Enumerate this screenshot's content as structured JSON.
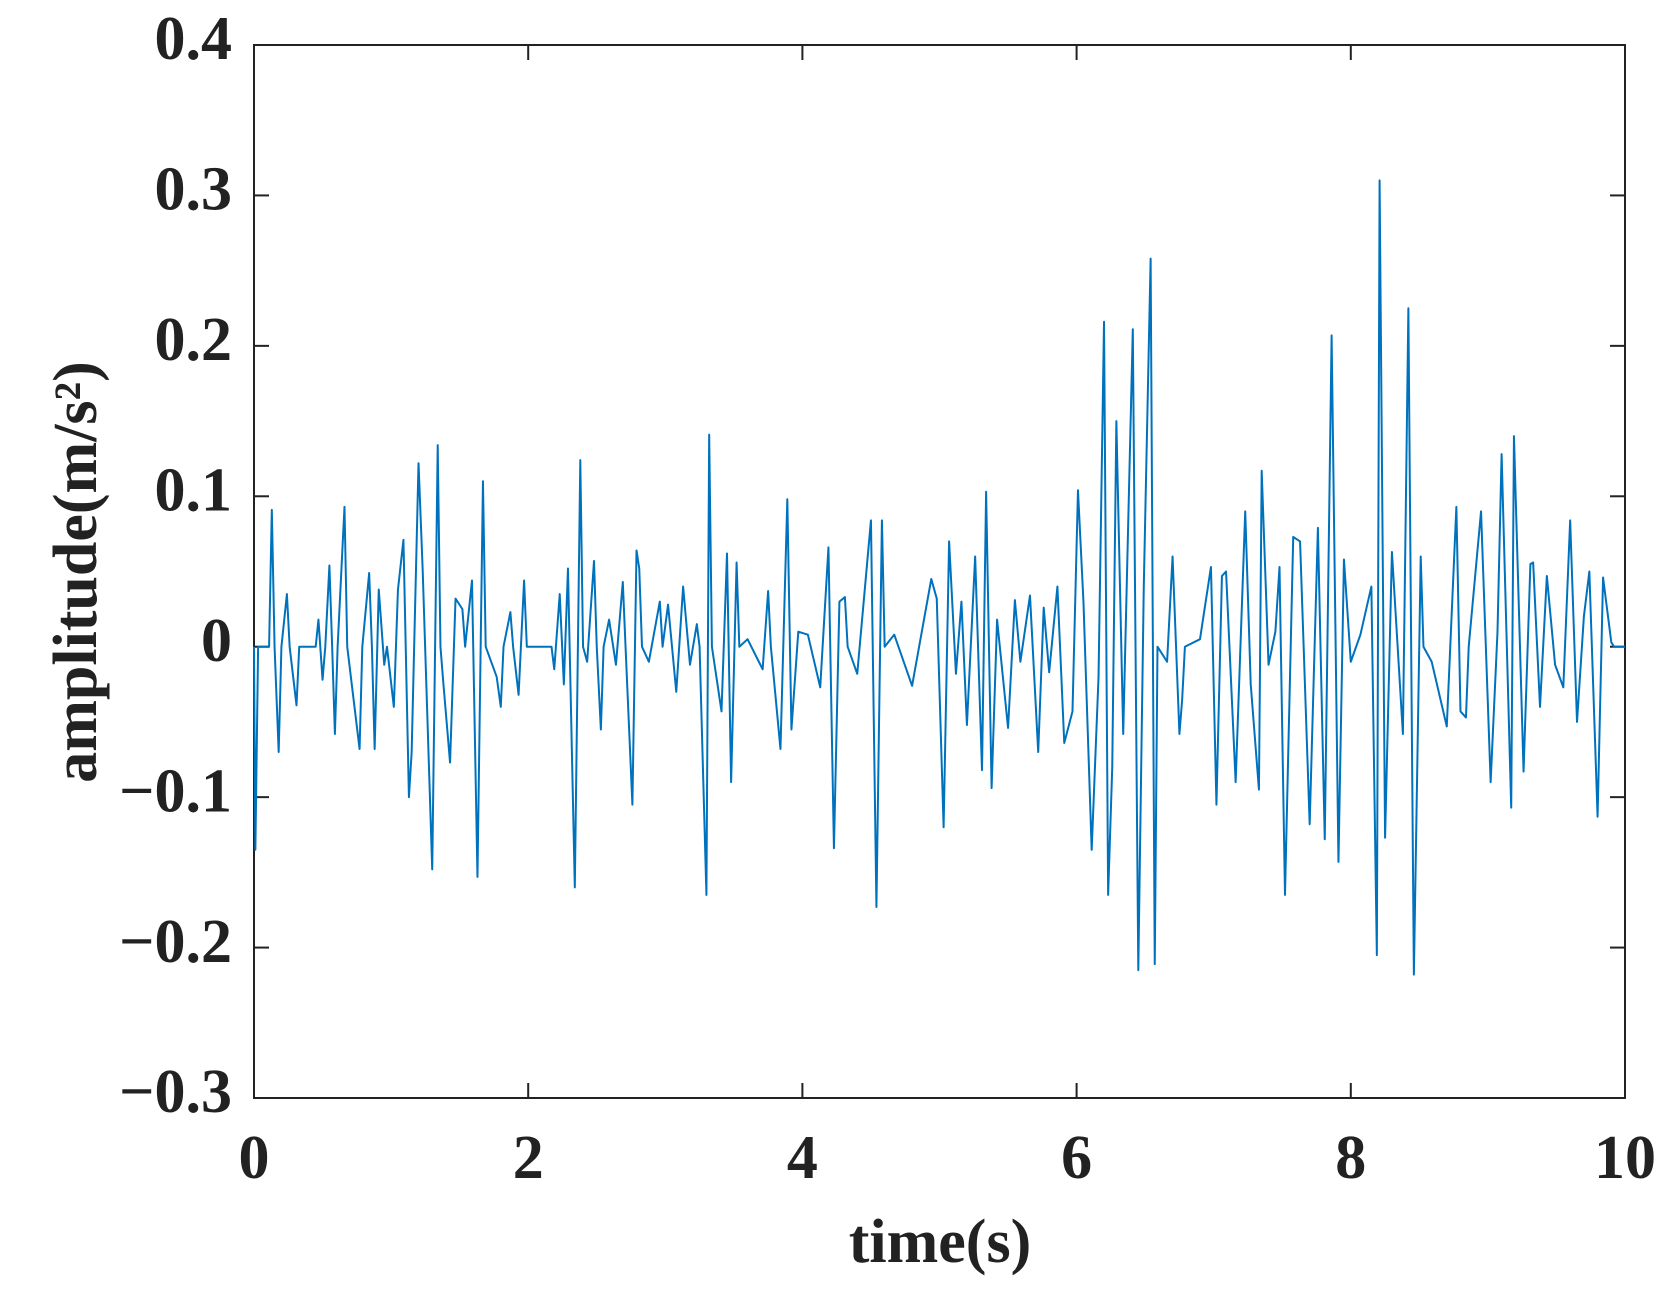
{
  "chart_data": {
    "type": "line",
    "xlabel": "time(s)",
    "ylabel": "amplitude(m/s²)",
    "x": [
      0,
      0.01,
      0.03,
      0.11,
      0.13,
      0.15,
      0.18,
      0.2,
      0.24,
      0.26,
      0.31,
      0.33,
      0.45,
      0.47,
      0.5,
      0.52,
      0.55,
      0.57,
      0.59,
      0.61,
      0.66,
      0.68,
      0.77,
      0.79,
      0.84,
      0.86,
      0.88,
      0.91,
      0.95,
      0.97,
      1.02,
      1.05,
      1.09,
      1.13,
      1.15,
      1.2,
      1.23,
      1.3,
      1.34,
      1.36,
      1.38,
      1.43,
      1.47,
      1.52,
      1.54,
      1.59,
      1.63,
      1.67,
      1.69,
      1.77,
      1.8,
      1.82,
      1.87,
      1.89,
      1.93,
      1.97,
      1.99,
      2.17,
      2.19,
      2.23,
      2.26,
      2.29,
      2.34,
      2.38,
      2.4,
      2.43,
      2.48,
      2.5,
      2.53,
      2.55,
      2.59,
      2.64,
      2.69,
      2.71,
      2.76,
      2.79,
      2.81,
      2.83,
      2.88,
      2.96,
      2.98,
      3.02,
      3.08,
      3.13,
      3.18,
      3.23,
      3.25,
      3.3,
      3.32,
      3.34,
      3.41,
      3.45,
      3.48,
      3.52,
      3.54,
      3.6,
      3.71,
      3.75,
      3.77,
      3.84,
      3.89,
      3.92,
      3.97,
      4.04,
      4.13,
      4.19,
      4.23,
      4.27,
      4.31,
      4.33,
      4.4,
      4.5,
      4.54,
      4.58,
      4.6,
      4.67,
      4.8,
      4.94,
      4.98,
      5.03,
      5.07,
      5.12,
      5.16,
      5.2,
      5.26,
      5.31,
      5.34,
      5.38,
      5.42,
      5.5,
      5.55,
      5.59,
      5.66,
      5.72,
      5.76,
      5.8,
      5.86,
      5.91,
      5.97,
      6.01,
      6.05,
      6.11,
      6.16,
      6.2,
      6.23,
      6.26,
      6.29,
      6.34,
      6.41,
      6.45,
      6.49,
      6.54,
      6.57,
      6.59,
      6.66,
      6.7,
      6.75,
      6.77,
      6.79,
      6.9,
      6.98,
      7.02,
      7.06,
      7.09,
      7.16,
      7.23,
      7.27,
      7.33,
      7.35,
      7.4,
      7.45,
      7.48,
      7.52,
      7.58,
      7.63,
      7.7,
      7.76,
      7.81,
      7.86,
      7.91,
      7.95,
      8.0,
      8.07,
      8.15,
      8.19,
      8.21,
      8.25,
      8.3,
      8.38,
      8.42,
      8.46,
      8.51,
      8.53,
      8.59,
      8.7,
      8.77,
      8.8,
      8.84,
      8.86,
      8.95,
      9.02,
      9.07,
      9.1,
      9.17,
      9.19,
      9.26,
      9.31,
      9.33,
      9.38,
      9.43,
      9.49,
      9.55,
      9.6,
      9.65,
      9.7,
      9.74,
      9.8,
      9.84,
      9.9,
      9.92,
      10
    ],
    "series": [
      {
        "color": "#0072bd",
        "values": [
          0,
          -0.135,
          0,
          0,
          0.091,
          0,
          -0.07,
          0,
          0.035,
          0,
          -0.039,
          0,
          0,
          0.018,
          -0.022,
          0,
          0.054,
          0,
          -0.058,
          0,
          0.093,
          0,
          -0.068,
          0,
          0.049,
          0,
          -0.068,
          0.038,
          -0.012,
          0,
          -0.04,
          0.038,
          0.071,
          -0.1,
          -0.07,
          0.122,
          0.052,
          -0.148,
          0.134,
          0,
          -0.023,
          -0.077,
          0.032,
          0.025,
          0,
          0.044,
          -0.153,
          0.11,
          0,
          -0.02,
          -0.04,
          0,
          0.023,
          0,
          -0.032,
          0.044,
          0,
          0,
          -0.015,
          0.035,
          -0.025,
          0.052,
          -0.16,
          0.124,
          0,
          -0.01,
          0.057,
          0,
          -0.055,
          0,
          0.018,
          -0.012,
          0.043,
          0,
          -0.105,
          0.064,
          0.052,
          0,
          -0.01,
          0.03,
          0,
          0.028,
          -0.03,
          0.04,
          -0.012,
          0.015,
          0,
          -0.165,
          0.141,
          0,
          -0.043,
          0.062,
          -0.09,
          0.056,
          0,
          0.005,
          -0.015,
          0.037,
          0,
          -0.068,
          0.098,
          -0.055,
          0.01,
          0.008,
          -0.027,
          0.066,
          -0.134,
          0.03,
          0.033,
          0,
          -0.018,
          0.084,
          -0.173,
          0.084,
          0,
          0.008,
          -0.026,
          0.045,
          0.032,
          -0.12,
          0.07,
          -0.018,
          0.03,
          -0.052,
          0.06,
          -0.082,
          0.103,
          -0.094,
          0.018,
          -0.054,
          0.031,
          -0.01,
          0.034,
          -0.07,
          0.026,
          -0.017,
          0.04,
          -0.064,
          -0.043,
          0.104,
          0.03,
          -0.135,
          -0.02,
          0.216,
          -0.165,
          -0.08,
          0.15,
          -0.058,
          0.211,
          -0.215,
          0.04,
          0.258,
          -0.211,
          0,
          -0.01,
          0.06,
          -0.058,
          -0.035,
          0,
          0.005,
          0.053,
          -0.105,
          0.047,
          0.05,
          -0.09,
          0.09,
          -0.025,
          -0.095,
          0.117,
          -0.012,
          0.01,
          0.053,
          -0.165,
          0.073,
          0.07,
          -0.118,
          0.079,
          -0.128,
          0.207,
          -0.143,
          0.058,
          -0.01,
          0.008,
          0.04,
          -0.205,
          0.31,
          -0.127,
          0.063,
          -0.058,
          0.225,
          -0.218,
          0.06,
          0,
          -0.01,
          -0.053,
          0.093,
          -0.043,
          -0.047,
          0,
          0.09,
          -0.09,
          0.01,
          0.128,
          -0.107,
          0.14,
          -0.083,
          0.055,
          0.056,
          -0.04,
          0.047,
          -0.012,
          -0.027,
          0.084,
          -0.05,
          0.02,
          0.05,
          -0.113,
          0.046,
          0.003,
          0,
          0
        ]
      }
    ],
    "xlim": [
      0,
      10
    ],
    "xticks": [
      0,
      2,
      4,
      6,
      8,
      10
    ],
    "ylim": [
      -0.3,
      0.4
    ],
    "yticks": [
      {
        "value": -0.3,
        "label": "−0.3"
      },
      {
        "value": -0.2,
        "label": "−0.2"
      },
      {
        "value": -0.1,
        "label": "−0.1"
      },
      0,
      0.1,
      0.2,
      0.3,
      0.4
    ],
    "grid": false
  }
}
